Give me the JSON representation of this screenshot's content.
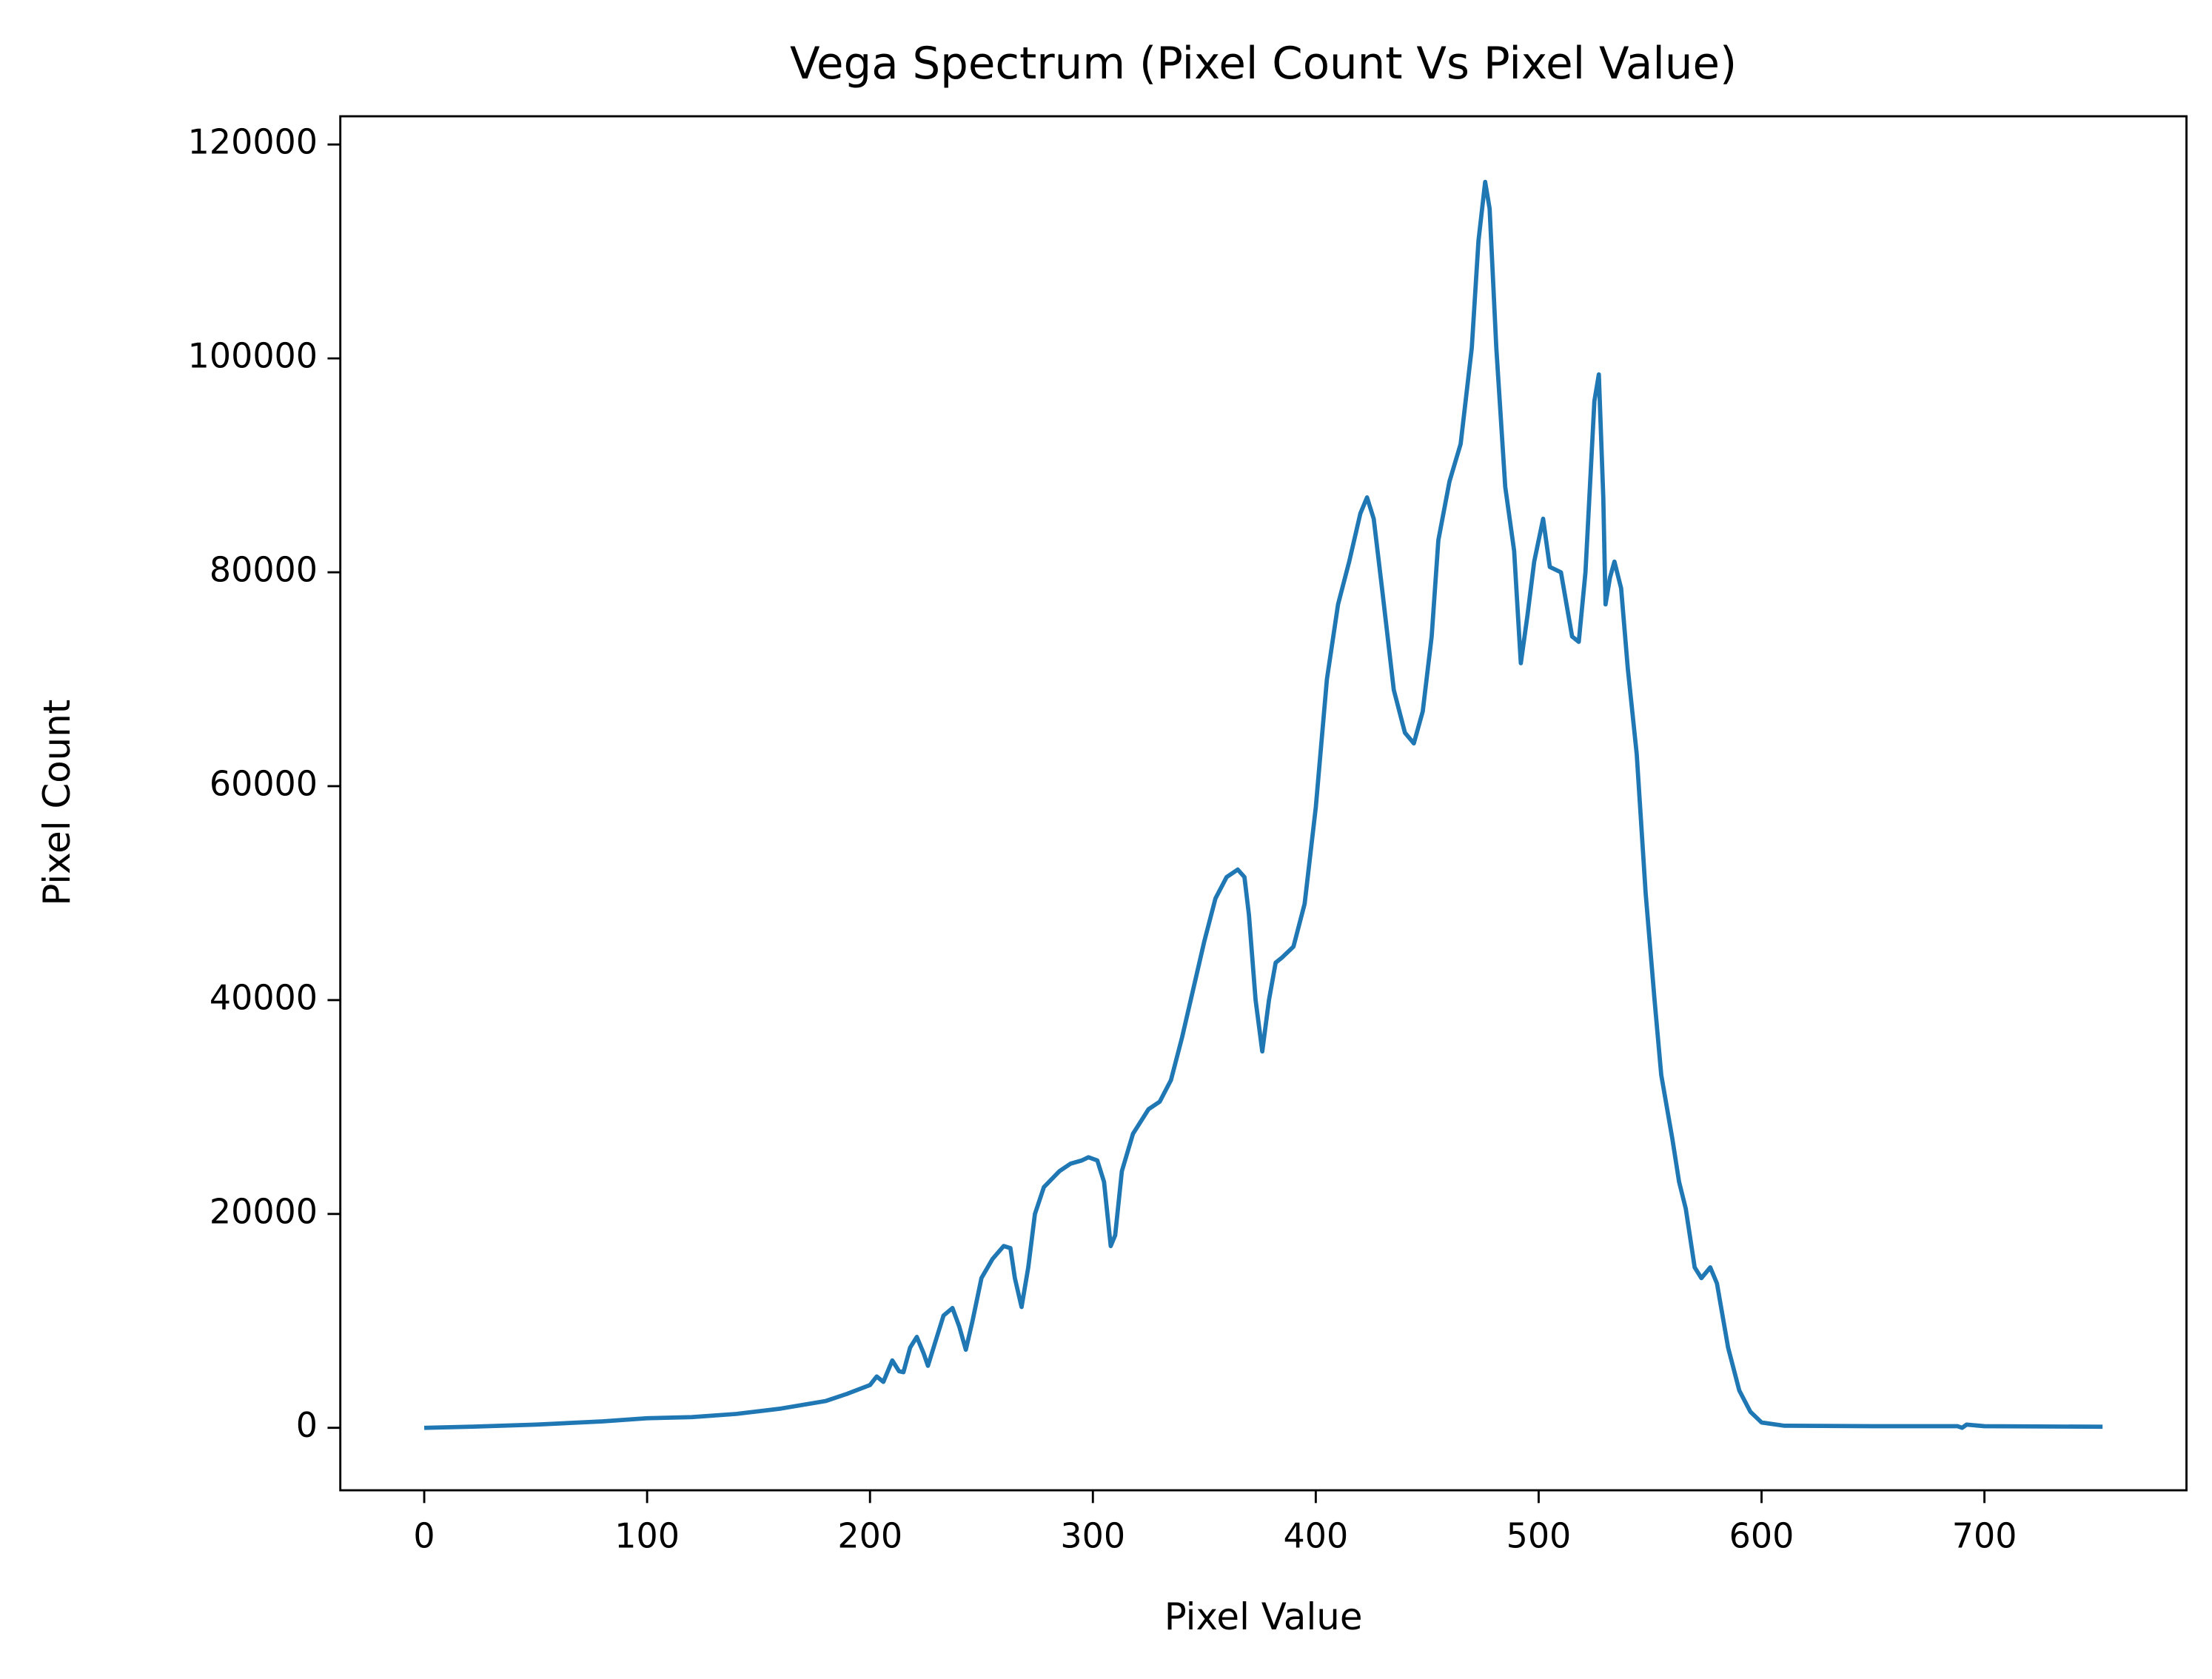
{
  "chart_data": {
    "type": "line",
    "title": "Vega Spectrum (Pixel Count Vs Pixel Value)",
    "x_label": "Pixel Value",
    "y_label": "Pixel Count",
    "color": "#1f77b4",
    "xlim": [
      -37.65,
      790.65
    ],
    "ylim": [
      -5840,
      122640
    ],
    "xticks": [
      0,
      100,
      200,
      300,
      400,
      500,
      600,
      700
    ],
    "yticks": [
      0,
      20000,
      40000,
      60000,
      80000,
      100000,
      120000
    ],
    "x": [
      0,
      20,
      50,
      80,
      100,
      120,
      140,
      160,
      180,
      190,
      195,
      200,
      203,
      206,
      210,
      213,
      215,
      218,
      221,
      224,
      226,
      230,
      233,
      237,
      240,
      243,
      246,
      250,
      255,
      260,
      263,
      265,
      268,
      271,
      274,
      278,
      285,
      290,
      295,
      298,
      302,
      305,
      308,
      310,
      313,
      318,
      325,
      330,
      335,
      340,
      345,
      350,
      355,
      360,
      365,
      368,
      370,
      373,
      376,
      379,
      382,
      385,
      390,
      395,
      400,
      405,
      410,
      415,
      420,
      423,
      426,
      430,
      435,
      440,
      444,
      448,
      452,
      455,
      460,
      465,
      470,
      473,
      476,
      478,
      481,
      485,
      489,
      492,
      495,
      498,
      502,
      505,
      510,
      515,
      518,
      521,
      525,
      527,
      529,
      530,
      532,
      534,
      537,
      540,
      544,
      548,
      552,
      555,
      560,
      563,
      566,
      570,
      573,
      577,
      580,
      585,
      590,
      595,
      600,
      610,
      650,
      688,
      690,
      692,
      700,
      753
    ],
    "values": [
      0,
      100,
      300,
      600,
      900,
      1000,
      1300,
      1800,
      2500,
      3200,
      3600,
      4000,
      4800,
      4300,
      6300,
      5300,
      5200,
      7500,
      8500,
      7000,
      5800,
      8500,
      10500,
      11200,
      9500,
      7300,
      10000,
      14000,
      15800,
      17000,
      16800,
      14000,
      11300,
      15000,
      20000,
      22500,
      24000,
      24700,
      25000,
      25300,
      25000,
      23000,
      17000,
      18000,
      24000,
      27500,
      29800,
      30500,
      32500,
      36500,
      41000,
      45500,
      49500,
      51500,
      52200,
      51500,
      48000,
      40000,
      35200,
      40000,
      43500,
      44000,
      45000,
      49000,
      58000,
      70000,
      77000,
      81000,
      85500,
      87000,
      85000,
      78000,
      69000,
      65000,
      64000,
      67000,
      74000,
      83000,
      88500,
      92000,
      101000,
      111000,
      116500,
      114000,
      101000,
      88000,
      82000,
      71500,
      76000,
      81000,
      85000,
      80500,
      80000,
      74000,
      73500,
      80000,
      96000,
      98500,
      87000,
      77000,
      79500,
      81000,
      78500,
      71000,
      63000,
      50000,
      40000,
      33000,
      27000,
      23000,
      20500,
      15000,
      14000,
      15000,
      13500,
      7500,
      3500,
      1500,
      500,
      200,
      150,
      150,
      0,
      300,
      150,
      100
    ]
  }
}
